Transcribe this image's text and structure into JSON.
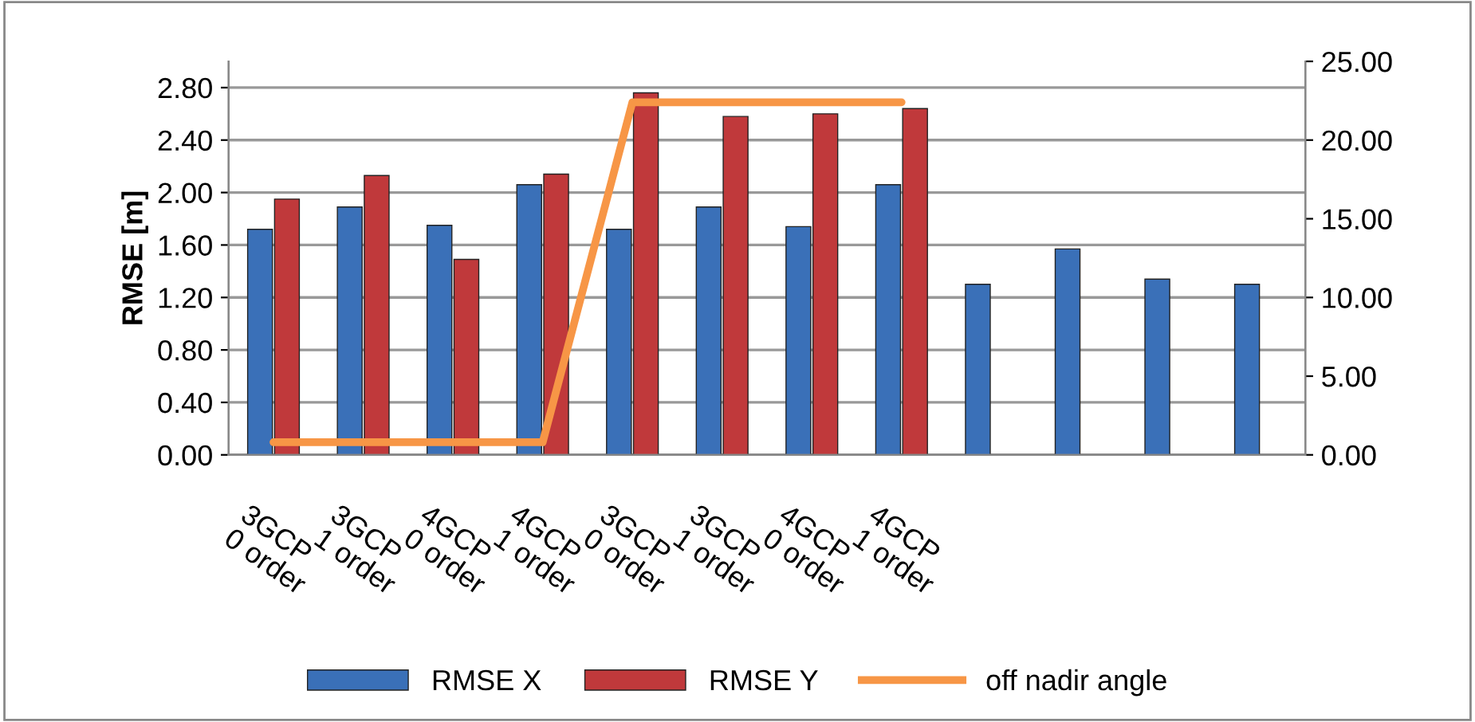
{
  "chart_data": {
    "type": "bar",
    "ylabel": "RMSE [m]",
    "categories": [
      "3GCP 0 order",
      "3GCP 1 order",
      "4GCP 0 order",
      "4GCP 1 order",
      "3GCP 0 order",
      "3GCP 1 order",
      "4GCP 0 order",
      "4GCP 1 order",
      null,
      null,
      null,
      null
    ],
    "series": [
      {
        "name": "RMSE X",
        "color": "#3a70b8",
        "values": [
          1.72,
          1.89,
          1.75,
          2.06,
          1.72,
          1.89,
          1.74,
          2.06,
          1.3,
          1.57,
          1.34,
          1.3
        ]
      },
      {
        "name": "RMSE Y",
        "color": "#c0393b",
        "values": [
          1.95,
          2.13,
          1.49,
          2.14,
          2.76,
          2.58,
          2.6,
          2.64,
          null,
          null,
          null,
          null
        ]
      },
      {
        "name": "off nadir angle",
        "type": "line",
        "axis": "y2",
        "color": "#f79646",
        "values": [
          0.8,
          0.8,
          0.8,
          0.8,
          22.4,
          22.4,
          22.4,
          22.4,
          null,
          null,
          null,
          null
        ]
      }
    ],
    "ylim": [
      0,
      3.0
    ],
    "yticks": [
      {
        "value": 0,
        "label": "0.00"
      },
      {
        "value": 0.4,
        "label": "0.40"
      },
      {
        "value": 0.8,
        "label": "0.80"
      },
      {
        "value": 1.2,
        "label": "1.20"
      },
      {
        "value": 1.6,
        "label": "1.60"
      },
      {
        "value": 2.0,
        "label": "2.00"
      },
      {
        "value": 2.4,
        "label": "2.40"
      },
      {
        "value": 2.8,
        "label": "2.80"
      }
    ],
    "y2lim": [
      0,
      25
    ],
    "y2ticks": [
      {
        "value": 0,
        "label": "0.00"
      },
      {
        "value": 5,
        "label": "5.00"
      },
      {
        "value": 10,
        "label": "10.00"
      },
      {
        "value": 15,
        "label": "15.00"
      },
      {
        "value": 20,
        "label": "20.00"
      },
      {
        "value": 25,
        "label": "25.00"
      }
    ],
    "grid": "y",
    "legend": "bottom"
  }
}
